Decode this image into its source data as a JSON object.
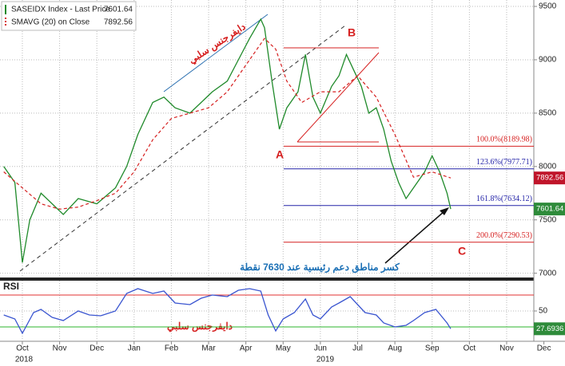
{
  "chart_data": [
    {
      "type": "line",
      "series": [
        {
          "name": "SASEIDX Index - Last Price",
          "color": "#1f8a2a",
          "x": [
            0,
            0.3,
            0.5,
            0.7,
            1.0,
            1.3,
            1.6,
            2.0,
            2.5,
            3.0,
            3.3,
            3.6,
            4.0,
            4.3,
            4.6,
            5.0,
            5.3,
            5.6,
            6.0,
            6.3,
            6.6,
            6.9,
            7.0,
            7.2,
            7.4,
            7.6,
            7.9,
            8.1,
            8.3,
            8.5,
            8.8,
            9.0,
            9.2,
            9.4,
            9.6,
            9.8,
            10.0,
            10.2,
            10.4,
            10.6,
            10.8,
            11.0,
            11.3,
            11.5,
            11.7,
            11.9,
            12.0
          ],
          "values": [
            8000,
            7850,
            7100,
            7500,
            7750,
            7650,
            7550,
            7700,
            7650,
            7800,
            8000,
            8300,
            8600,
            8650,
            8550,
            8500,
            8600,
            8700,
            8800,
            9000,
            9200,
            9380,
            9300,
            8800,
            8350,
            8550,
            8700,
            9050,
            8650,
            8500,
            8750,
            8850,
            9050,
            8900,
            8750,
            8500,
            8550,
            8350,
            8050,
            7850,
            7700,
            7800,
            7950,
            8100,
            7950,
            7750,
            7601.64
          ],
          "tag_color": "#2e8b3a"
        },
        {
          "name": "SMAVG (20) on Close",
          "color": "#d62020",
          "dash": true,
          "x": [
            0,
            0.5,
            1,
            1.5,
            2,
            2.5,
            3,
            3.5,
            4,
            4.5,
            5,
            5.5,
            6,
            6.5,
            7,
            7.3,
            7.6,
            8,
            8.5,
            9,
            9.5,
            10,
            10.5,
            11,
            11.5,
            12
          ],
          "values": [
            7950,
            7800,
            7650,
            7600,
            7620,
            7680,
            7750,
            7950,
            8250,
            8450,
            8500,
            8550,
            8700,
            8950,
            9200,
            9100,
            8800,
            8600,
            8700,
            8700,
            8850,
            8650,
            8300,
            7900,
            7950,
            7892.56
          ],
          "tag_color": "#c0152a"
        }
      ],
      "xlim": [
        -0.1,
        14.23
      ],
      "ylim": [
        6960,
        9560
      ],
      "yticks": [
        7000,
        7500,
        8000,
        8500,
        9000,
        9500
      ],
      "grid": true,
      "fib_levels": [
        {
          "label": "100.0%(8189.98)",
          "value": 8189.98,
          "color": "#d62020"
        },
        {
          "label": "123.6%(7977.71)",
          "value": 7977.71,
          "color": "#2424a8"
        },
        {
          "label": "161.8%(7634.12)",
          "value": 7634.12,
          "color": "#2424a8"
        },
        {
          "label": "200.0%(7290.53)",
          "value": 7290.53,
          "color": "#d62020"
        }
      ],
      "annotations": {
        "a": "A",
        "b": "B",
        "c": "C",
        "divergence": "دايفرجنس سلبي",
        "support_break": "كسر مناطق دعم رئيسية عند 7630 نقطة"
      }
    },
    {
      "type": "line",
      "title": "RSI",
      "series": [
        {
          "name": "RSI",
          "color": "#3a55d0",
          "tag_color": "#2e8b3a",
          "x": [
            0,
            0.3,
            0.5,
            0.8,
            1,
            1.3,
            1.6,
            2,
            2.3,
            2.6,
            3,
            3.3,
            3.6,
            4,
            4.3,
            4.6,
            5,
            5.3,
            5.6,
            6,
            6.3,
            6.6,
            6.9,
            7.1,
            7.3,
            7.5,
            7.8,
            8.1,
            8.3,
            8.5,
            8.8,
            9.0,
            9.3,
            9.5,
            9.7,
            10,
            10.2,
            10.5,
            10.8,
            11,
            11.3,
            11.6,
            11.9,
            12
          ],
          "values": [
            45,
            40,
            22,
            48,
            52,
            42,
            38,
            50,
            45,
            44,
            50,
            72,
            78,
            72,
            75,
            60,
            58,
            66,
            70,
            68,
            76,
            78,
            75,
            45,
            25,
            40,
            48,
            65,
            45,
            40,
            55,
            60,
            68,
            58,
            48,
            45,
            35,
            30,
            32,
            38,
            48,
            52,
            35,
            27.6936
          ]
        }
      ],
      "xlim": [
        -0.1,
        14.23
      ],
      "ylim": [
        15,
        88
      ],
      "yticks": [
        50
      ],
      "ref_lines": [
        {
          "value": 70,
          "color": "#e03030"
        },
        {
          "value": 30,
          "color": "#2bb52b"
        }
      ],
      "xticks": [
        {
          "value": 0.5,
          "label": "Oct"
        },
        {
          "value": 1.5,
          "label": "Nov"
        },
        {
          "value": 2.5,
          "label": "Dec"
        },
        {
          "value": 3.5,
          "label": "Jan"
        },
        {
          "value": 4.5,
          "label": "Feb"
        },
        {
          "value": 5.5,
          "label": "Mar"
        },
        {
          "value": 6.5,
          "label": "Apr"
        },
        {
          "value": 7.5,
          "label": "May"
        },
        {
          "value": 8.5,
          "label": "Jun"
        },
        {
          "value": 9.5,
          "label": "Jul"
        },
        {
          "value": 10.5,
          "label": "Aug"
        },
        {
          "value": 11.5,
          "label": "Sep"
        },
        {
          "value": 12.5,
          "label": "Oct"
        },
        {
          "value": 13.5,
          "label": "Nov"
        },
        {
          "value": 14.5,
          "label": "Dec"
        }
      ],
      "year_labels": [
        "2018",
        "2019"
      ],
      "annotations": {
        "divergence": "دايفرجنس سلبي"
      }
    }
  ]
}
